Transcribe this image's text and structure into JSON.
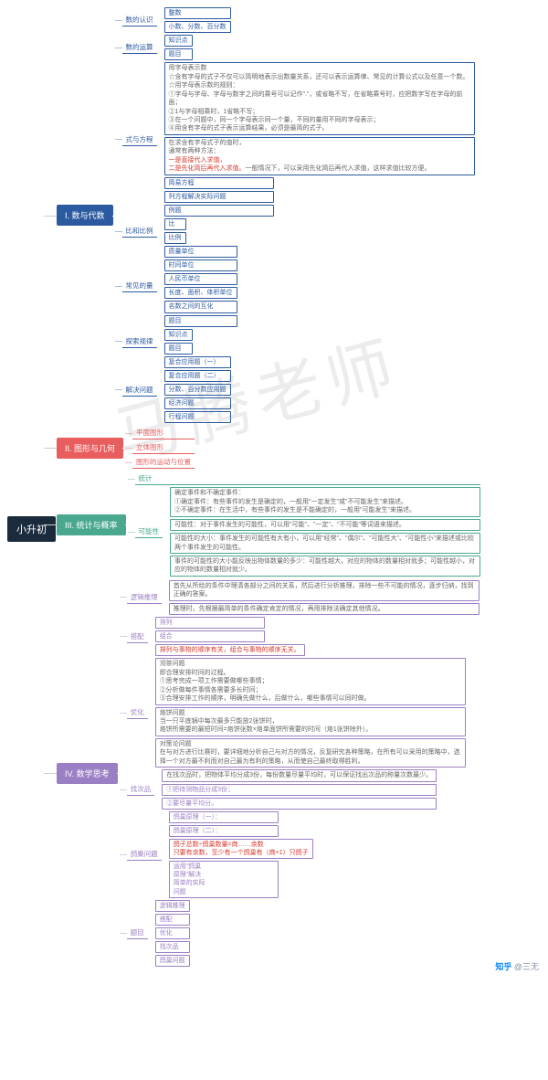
{
  "root": "小升初",
  "watermark": "马腾老师",
  "attrib_site": "知乎",
  "attrib_user": "@三无",
  "colors": {
    "root_bg": "#1a2b3c",
    "blue": "#2c5aa0",
    "red": "#e85d5d",
    "teal": "#4aa88f",
    "purple": "#9b7fc4",
    "text_highlight": "#d9372b"
  },
  "b1": {
    "label": "I. 数与代数",
    "n1": {
      "label": "数的认识",
      "c1": "整数",
      "c2": "小数、分数、百分数"
    },
    "n2": {
      "label": "数的运算",
      "c1": "知识点",
      "c2": "题目"
    },
    "n3": {
      "label": "式与方程",
      "long": "用字母表示数\n☆含有字母的式子不仅可以简明地表示出数量关系，还可以表示运算律、常见的计算公式以及任意一个数。\n☆用字母表示数的规则：\n①字母与字母、字母与数字之间的乘号可以记作\".\"，或省略不写，在省略乘号时，应把数字写在字母的前面；\n②1与字母相乘时，1省略不写；\n③在一个问题中，同一个字母表示同一个量，不同的量用不同的字母表示；\n④用含有字母的式子表示运算结果，必须是最简的式子。",
      "sub1a": "在求含有字母式子的值时，\n通常有两种方法：",
      "sub1b": "一是直接代入求值，\n二是先化简后再代入求值。",
      "sub1c": "一般情况下，可以采用先化简后再代入求值，这样求值比较方便。",
      "c2": "简易方程",
      "c3": "列方程解决实际问题",
      "c4": "例题"
    },
    "n4": {
      "label": "比和比例",
      "c1": "比",
      "c2": "比例"
    },
    "n5": {
      "label": "常见的量",
      "c1": "质量单位",
      "c2": "时间单位",
      "c3": "人民币单位",
      "c4": "长度、面积、体积单位",
      "c5": "名数之间的互化",
      "c6": "题目"
    },
    "n6": {
      "label": "探索规律",
      "c1": "知识点",
      "c2": "题目"
    },
    "n7": {
      "label": "解决问题",
      "c1": "复合应用题（一）",
      "c2": "复合应用题（二）",
      "c3": "分数、百分数应用题",
      "c4": "经济问题",
      "c5": "行程问题"
    }
  },
  "b2": {
    "label": "II. 图形与几何",
    "c1": "平面图形",
    "c2": "立体图形",
    "c3": "图形的运动与位置"
  },
  "b3": {
    "label": "III. 统计与概率",
    "n1": "统计",
    "n2": {
      "label": "可能性",
      "c1": "确定事件和不确定事件：\n①确定事件：有些事件的发生是确定的，一般用\"一定发生\"或\"不可能发生\"来描述。\n②不确定事件：在生活中，有些事件的发生是不能确定的，一般用\"可能发生\"来描述。",
      "c2": "可能性：对于事件发生的可能性，可以用\"可能\"、\"一定\"、\"不可能\"等词语来描述。",
      "c3": "可能性的大小：事件发生的可能性有大有小，可以用\"经常\"、\"偶尔\"、\"可能性大\"、\"可能性小\"来描述或比较两个事件发生的可能性。",
      "c4": "事件的可能性的大小能反映出物体数量的多少：可能性越大，对应的物体的数量相对就多；可能性越小，对应的物体的数量相对就少。"
    }
  },
  "b4": {
    "label": "IV. 数学思考",
    "n1": {
      "label": "逻辑推理",
      "c1": "首先从所给的条件中理清各部分之间的关系，然后进行分析推理，排除一些不可能的情况，逐步归纳，找到正确的答案。",
      "c2": "推理时，先根据最简单的条件确定肯定的情况，再用排除法确定其他情况。"
    },
    "n2": {
      "label": "搭配",
      "c1": "排列",
      "c2": "组合",
      "c3": "排列与事物的顺序有关，组合与事物的顺序无关。"
    },
    "n3": {
      "label": "优化",
      "c1": "沏茶问题\n即合理安排时间的过程。\n①思考完成一项工作需要做哪些事情；\n②分析做每件事情各需要多长时间；\n③合理安排工作的顺序，明确先做什么，后做什么，哪些事情可以同时做。",
      "c2": "烙饼问题\n当一只平底锅中每次最多只能放2张饼时，\n烙饼所需要的最短时间=烙饼张数×烙单面饼所需要的时间（烙1张饼除外）。",
      "c3": "对策论问题\n在与对方进行比赛时，要详细地分析自己与对方的情况，反复研究各种策略，在所有可以采用的策略中，选择一个对方最不利而对自己最为有利的策略，从而使自己最终取得胜利。"
    },
    "n4": {
      "label": "找次品",
      "c0": "在找次品时，把物体平均分成3份，每份数量尽量平均时，可以保证找出次品的称量次数最少。",
      "c1": "①把待测物品分成3份；",
      "c2": "②要尽量平均分。"
    },
    "n5": {
      "label": "鸽巢问题",
      "c1": "鸽巢原理（一）：",
      "c2": "鸽巢原理（二）：",
      "c3a": "鸽子总数÷鸽巢数量=商……余数",
      "c3b": "只要有余数，至少有一个鸽巢有（商+1）只鸽子",
      "c4": "运用\"鸽巢\n原理\"解决\n简单的实际\n问题"
    },
    "n6": {
      "label": "题目",
      "c1": "逻辑推理",
      "c2": "搭配",
      "c3": "优化",
      "c4": "找次品",
      "c5": "鸽巢问题"
    }
  }
}
